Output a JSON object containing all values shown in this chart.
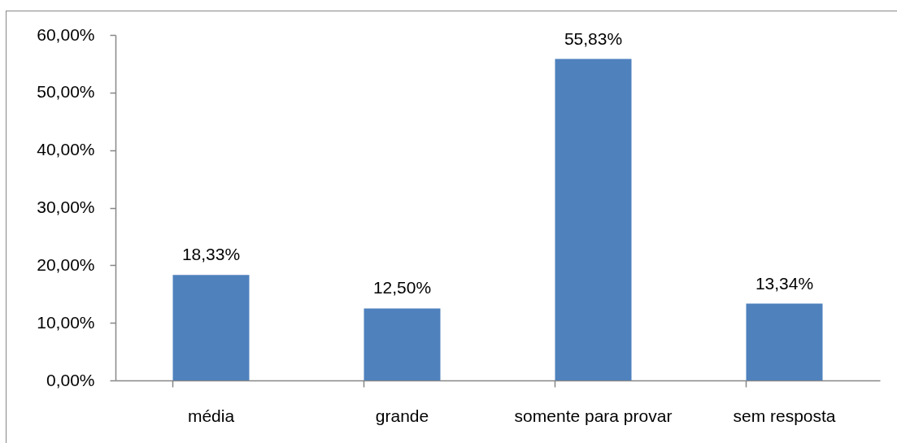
{
  "chart_data": {
    "type": "bar",
    "categories": [
      "média",
      "grande",
      "somente para provar",
      "sem resposta"
    ],
    "values": [
      18.33,
      12.5,
      55.83,
      13.34
    ],
    "value_labels": [
      "18,33%",
      "12,50%",
      "55,83%",
      "13,34%"
    ],
    "color": "#4f81bd",
    "ylim": [
      0,
      60
    ],
    "yticks": [
      {
        "value": 0,
        "label": "0,00%"
      },
      {
        "value": 10,
        "label": "10,00%"
      },
      {
        "value": 20,
        "label": "20,00%"
      },
      {
        "value": 30,
        "label": "30,00%"
      },
      {
        "value": 40,
        "label": "40,00%"
      },
      {
        "value": 50,
        "label": "50,00%"
      },
      {
        "value": 60,
        "label": "60,00%"
      }
    ],
    "grid": false
  }
}
